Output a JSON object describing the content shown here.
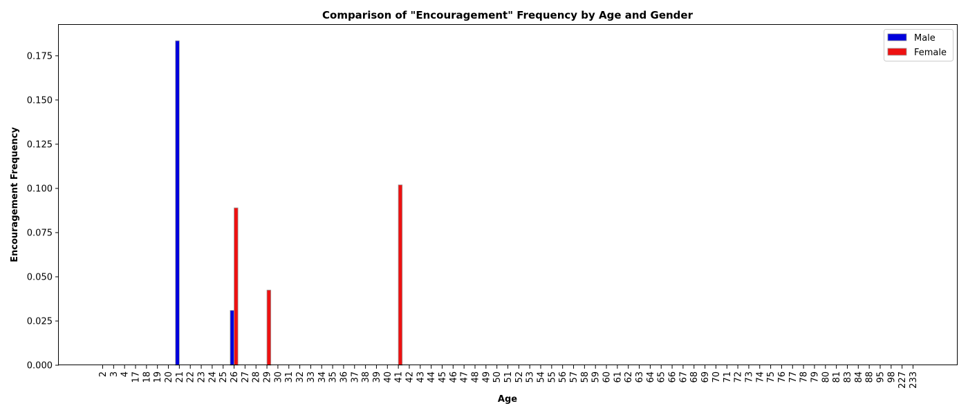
{
  "chart_data": {
    "type": "bar",
    "title": "Comparison of \"Encouragement\" Frequency by Age and Gender",
    "xlabel": "Age",
    "ylabel": "Encouragement Frequency",
    "ylim": [
      0,
      0.1925
    ],
    "yticks": [
      0.0,
      0.025,
      0.05,
      0.075,
      0.1,
      0.125,
      0.15,
      0.175
    ],
    "legend_position": "top-right",
    "grid": false,
    "categories": [
      "2",
      "3",
      "4",
      "17",
      "18",
      "19",
      "20",
      "21",
      "22",
      "23",
      "24",
      "25",
      "26",
      "27",
      "28",
      "29",
      "30",
      "31",
      "32",
      "33",
      "34",
      "35",
      "36",
      "37",
      "38",
      "39",
      "40",
      "41",
      "42",
      "43",
      "44",
      "45",
      "46",
      "47",
      "48",
      "49",
      "50",
      "51",
      "52",
      "53",
      "54",
      "55",
      "56",
      "57",
      "58",
      "59",
      "60",
      "61",
      "62",
      "63",
      "64",
      "65",
      "66",
      "67",
      "68",
      "69",
      "70",
      "71",
      "72",
      "73",
      "74",
      "75",
      "76",
      "77",
      "78",
      "79",
      "80",
      "81",
      "83",
      "84",
      "88",
      "95",
      "98",
      "227",
      "233"
    ],
    "series": [
      {
        "name": "Male",
        "color": "#0000dd",
        "values": [
          0,
          0,
          0,
          0,
          0,
          0,
          0,
          0.1835,
          0,
          0,
          0,
          0,
          0.031,
          0,
          0,
          0,
          0,
          0,
          0,
          0,
          0,
          0,
          0,
          0,
          0,
          0,
          0,
          0,
          0,
          0,
          0,
          0,
          0,
          0,
          0,
          0,
          0,
          0,
          0,
          0,
          0,
          0,
          0,
          0,
          0,
          0,
          0,
          0,
          0,
          0,
          0,
          0,
          0,
          0,
          0,
          0,
          0,
          0,
          0,
          0,
          0,
          0,
          0,
          0,
          0,
          0,
          0,
          0,
          0,
          0,
          0,
          0,
          0,
          0,
          0
        ]
      },
      {
        "name": "Female",
        "color": "#ee1111",
        "values": [
          0,
          0,
          0,
          0,
          0,
          0,
          0,
          0,
          0,
          0,
          0,
          0,
          0.089,
          0,
          0,
          0.0425,
          0,
          0,
          0,
          0,
          0,
          0,
          0,
          0,
          0,
          0,
          0,
          0.102,
          0,
          0,
          0,
          0,
          0,
          0,
          0,
          0,
          0,
          0,
          0,
          0,
          0,
          0,
          0,
          0,
          0,
          0,
          0,
          0,
          0,
          0,
          0,
          0,
          0,
          0,
          0,
          0,
          0,
          0,
          0,
          0,
          0,
          0,
          0,
          0,
          0,
          0,
          0,
          0,
          0,
          0,
          0,
          0,
          0,
          0,
          0
        ]
      }
    ]
  }
}
